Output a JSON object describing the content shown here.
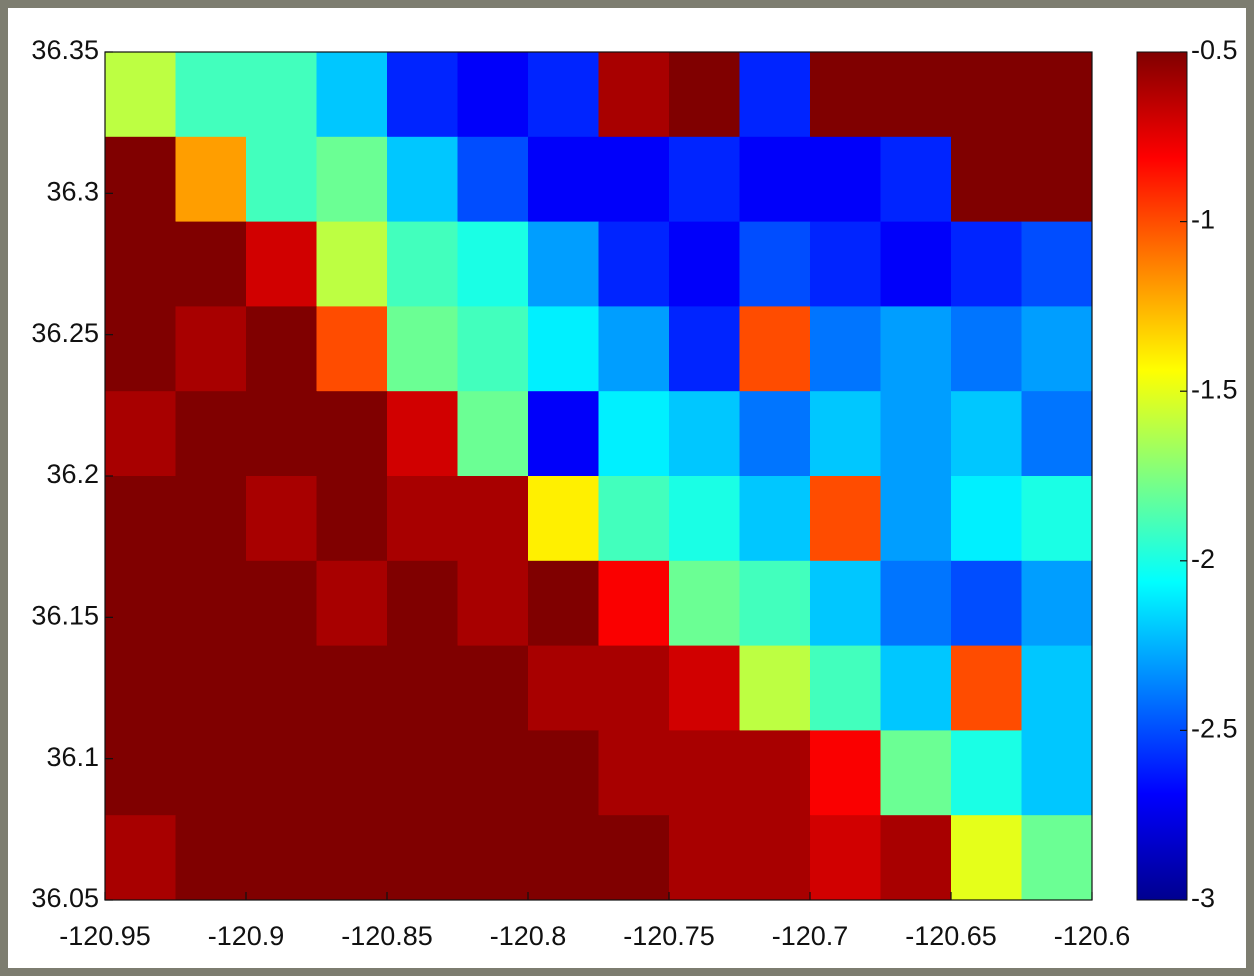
{
  "chart_data": {
    "type": "heatmap",
    "colormap": "jet",
    "xlim": [
      -120.95,
      -120.6
    ],
    "ylim": [
      36.05,
      36.35
    ],
    "xticks": [
      -120.95,
      -120.9,
      -120.85,
      -120.8,
      -120.75,
      -120.7,
      -120.65,
      -120.6
    ],
    "yticks": [
      36.05,
      36.1,
      36.15,
      36.2,
      36.25,
      36.3,
      36.35
    ],
    "clim": [
      -3,
      -0.5
    ],
    "cticks": [
      -3,
      -2.5,
      -2,
      -1.5,
      -1,
      -0.5
    ],
    "z": [
      [
        -1.6,
        -1.9,
        -1.9,
        -2.2,
        -2.6,
        -2.7,
        -2.6,
        -0.6,
        -0.5,
        -2.6,
        -0.5,
        -0.5,
        -0.5,
        -0.5
      ],
      [
        -0.5,
        -1.2,
        -1.9,
        -1.8,
        -2.2,
        -2.5,
        -2.7,
        -2.7,
        -2.6,
        -2.7,
        -2.7,
        -2.6,
        -0.5,
        -0.5
      ],
      [
        -0.5,
        -0.5,
        -0.7,
        -1.6,
        -1.9,
        -2.0,
        -2.3,
        -2.6,
        -2.7,
        -2.5,
        -2.6,
        -2.7,
        -2.6,
        -2.5
      ],
      [
        -0.5,
        -0.6,
        -0.5,
        -1.0,
        -1.8,
        -1.9,
        -2.1,
        -2.3,
        -2.6,
        -1.0,
        -2.4,
        -2.3,
        -2.4,
        -2.3
      ],
      [
        -0.6,
        -0.5,
        -0.5,
        -0.5,
        -0.7,
        -1.8,
        -2.7,
        -2.1,
        -2.2,
        -2.4,
        -2.2,
        -2.3,
        -2.2,
        -2.4
      ],
      [
        -0.5,
        -0.5,
        -0.6,
        -0.5,
        -0.6,
        -0.6,
        -1.4,
        -1.9,
        -2.0,
        -2.2,
        -1.0,
        -2.3,
        -2.1,
        -2.0
      ],
      [
        -0.5,
        -0.5,
        -0.5,
        -0.6,
        -0.5,
        -0.6,
        -0.5,
        -0.8,
        -1.8,
        -1.9,
        -2.2,
        -2.4,
        -2.5,
        -2.3
      ],
      [
        -0.5,
        -0.5,
        -0.5,
        -0.5,
        -0.5,
        -0.5,
        -0.6,
        -0.6,
        -0.7,
        -1.6,
        -1.9,
        -2.2,
        -1.0,
        -2.2
      ],
      [
        -0.5,
        -0.5,
        -0.5,
        -0.5,
        -0.5,
        -0.5,
        -0.5,
        -0.6,
        -0.6,
        -0.6,
        -0.8,
        -1.8,
        -2.0,
        -2.2
      ],
      [
        -0.6,
        -0.5,
        -0.5,
        -0.5,
        -0.5,
        -0.5,
        -0.5,
        -0.5,
        -0.6,
        -0.6,
        -0.7,
        -0.6,
        -1.5,
        -1.8
      ]
    ]
  }
}
